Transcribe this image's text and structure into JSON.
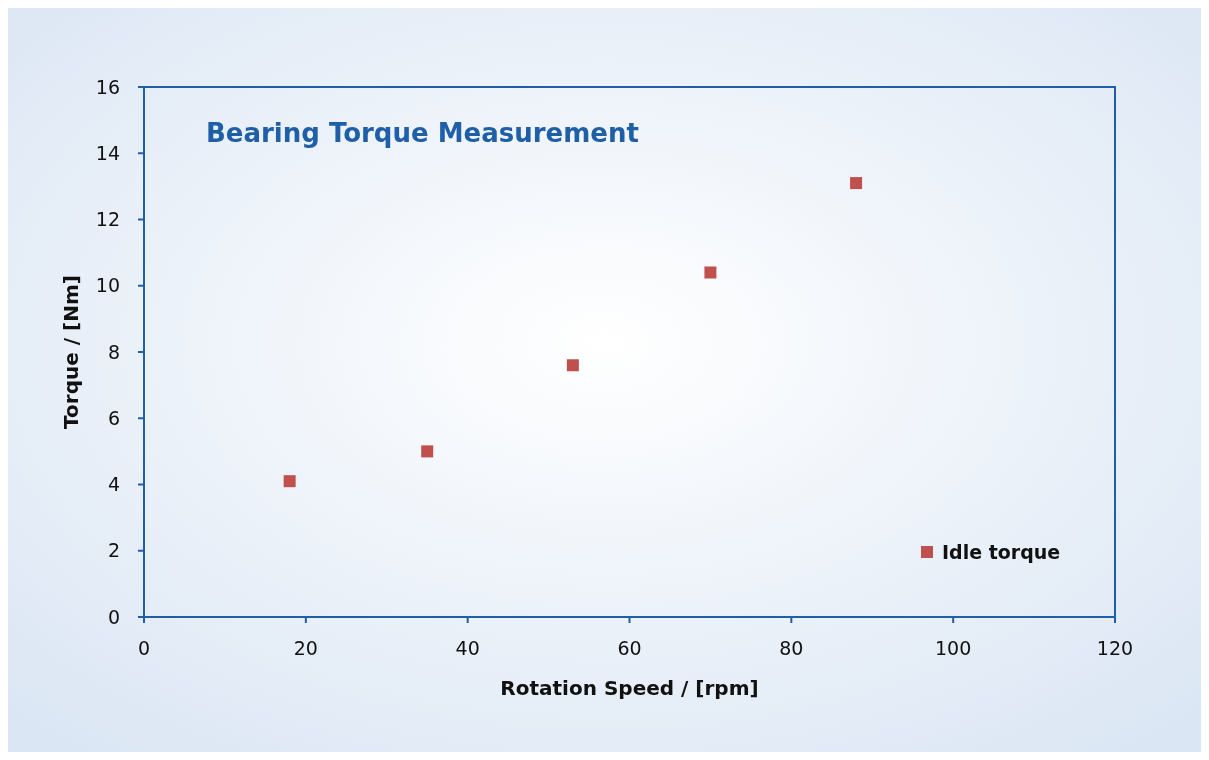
{
  "chart_data": {
    "type": "scatter",
    "title": "Bearing Torque Measurement",
    "xlabel": "Rotation Speed / [rpm]",
    "ylabel": "Torque / [Nm]",
    "x": [
      18,
      35,
      53,
      70,
      88
    ],
    "series": [
      {
        "name": "Idle torque",
        "color": "#c0504d",
        "values": [
          4.1,
          5.0,
          7.6,
          10.4,
          13.1
        ]
      }
    ],
    "xlim": [
      0,
      120
    ],
    "xticks": [
      0,
      20,
      40,
      60,
      80,
      100,
      120
    ],
    "ylim": [
      0,
      16
    ],
    "yticks": [
      0,
      2,
      4,
      6,
      8,
      10,
      12,
      14,
      16
    ],
    "marker": "square",
    "legend": "bottom right",
    "grid": false
  }
}
